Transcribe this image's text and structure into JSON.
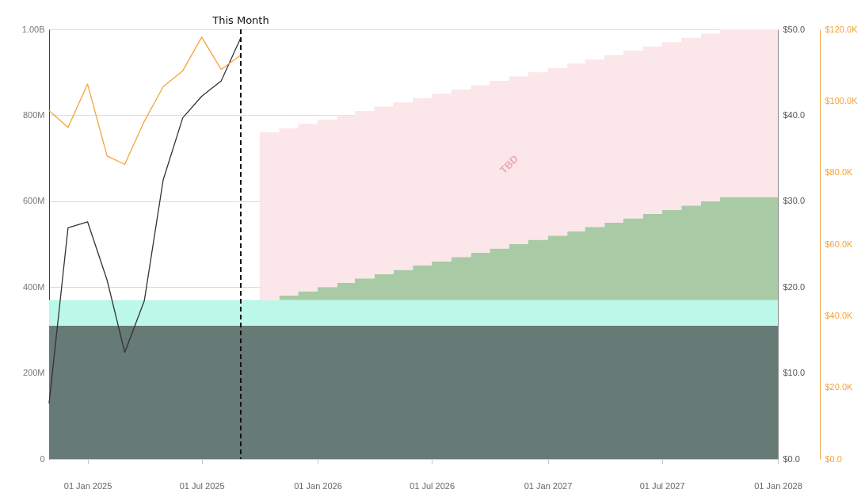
{
  "chart_data": {
    "type": "area",
    "stacked": true,
    "x": [
      "2024-11-01",
      "2025-10-01",
      "2025-11-01",
      "2025-11-01",
      "2025-12-01",
      "2025-12-01",
      "2026-01-01",
      "2026-01-01",
      "2026-02-01",
      "2026-02-01",
      "2026-03-01",
      "2026-03-01",
      "2026-04-01",
      "2026-04-01",
      "2026-05-01",
      "2026-05-01",
      "2026-06-01",
      "2026-06-01",
      "2026-07-01",
      "2026-07-01",
      "2026-08-01",
      "2026-08-01",
      "2026-09-01",
      "2026-09-01",
      "2026-10-01",
      "2026-10-01",
      "2026-11-01",
      "2026-11-01",
      "2026-12-01",
      "2026-12-01",
      "2027-01-01",
      "2027-01-01",
      "2027-02-01",
      "2027-02-01",
      "2027-03-01",
      "2027-03-01",
      "2027-04-01",
      "2027-04-01",
      "2027-05-01",
      "2027-05-01",
      "2027-06-01",
      "2027-06-01",
      "2027-07-01",
      "2027-07-01",
      "2027-08-01",
      "2027-08-01",
      "2027-09-01",
      "2027-09-01",
      "2027-10-01",
      "2027-10-01",
      "2028-01-01"
    ],
    "xlim": [
      "2024-11-01",
      "2028-01-01"
    ],
    "xticks": [
      {
        "value": "2025-01-01",
        "label": "01 Jan 2025"
      },
      {
        "value": "2025-07-01",
        "label": "01 Jul 2025"
      },
      {
        "value": "2026-01-01",
        "label": "01 Jan 2026"
      },
      {
        "value": "2026-07-01",
        "label": "01 Jul 2026"
      },
      {
        "value": "2027-01-01",
        "label": "01 Jan 2027"
      },
      {
        "value": "2027-07-01",
        "label": "01 Jul 2027"
      },
      {
        "value": "2028-01-01",
        "label": "01 Jan 2028"
      }
    ],
    "ylim": [
      0,
      1000000000
    ],
    "yticks": [
      0,
      {
        "value": 200000000,
        "label": "200M"
      },
      {
        "value": 400000000,
        "label": "400M"
      },
      {
        "value": 600000000,
        "label": "600M"
      },
      {
        "value": 800000000,
        "label": "800M"
      },
      {
        "value": 1000000000,
        "label": "1.00B"
      }
    ],
    "y2lim": [
      0,
      50
    ],
    "y2ticks": [
      {
        "value": 0,
        "label": "$0.0"
      },
      {
        "value": 10,
        "label": "$10.0"
      },
      {
        "value": 20,
        "label": "$20.0"
      },
      {
        "value": 30,
        "label": "$30.0"
      },
      {
        "value": 40,
        "label": "$40.0"
      },
      {
        "value": 50,
        "label": "$50.0"
      }
    ],
    "y3lim": [
      0,
      120000
    ],
    "y3ticks": [
      {
        "value": 0,
        "label": "$0.0"
      },
      {
        "value": 20000,
        "label": "$20.0K"
      },
      {
        "value": 40000,
        "label": "$40.0K"
      },
      {
        "value": 60000,
        "label": "$60.0K"
      },
      {
        "value": 80000,
        "label": "$80.0K"
      },
      {
        "value": 100000,
        "label": "$100.0K"
      },
      {
        "value": 120000,
        "label": "$120.0K"
      }
    ],
    "grid": "y",
    "ref_lines": [
      {
        "axis": "x",
        "value": "2025-09-01",
        "label": "This Month",
        "color": "#111111",
        "line_style": "dashed"
      }
    ],
    "series": [
      {
        "color": "#667a76",
        "values": [
          310000000,
          310000000,
          310000000,
          310000000,
          310000000,
          310000000,
          310000000,
          310000000,
          310000000,
          310000000,
          310000000,
          310000000,
          310000000,
          310000000,
          310000000,
          310000000,
          310000000,
          310000000,
          310000000,
          310000000,
          310000000,
          310000000,
          310000000,
          310000000,
          310000000,
          310000000,
          310000000,
          310000000,
          310000000,
          310000000,
          310000000,
          310000000,
          310000000,
          310000000,
          310000000,
          310000000,
          310000000,
          310000000,
          310000000,
          310000000,
          310000000,
          310000000,
          310000000,
          310000000,
          310000000,
          310000000,
          310000000,
          310000000,
          310000000,
          310000000,
          310000000
        ]
      },
      {
        "color": "#bcf8ea",
        "values": [
          60000000,
          60000000,
          60000000,
          60000000,
          60000000,
          60000000,
          60000000,
          60000000,
          60000000,
          60000000,
          60000000,
          60000000,
          60000000,
          60000000,
          60000000,
          60000000,
          60000000,
          60000000,
          60000000,
          60000000,
          60000000,
          60000000,
          60000000,
          60000000,
          60000000,
          60000000,
          60000000,
          60000000,
          60000000,
          60000000,
          60000000,
          60000000,
          60000000,
          60000000,
          60000000,
          60000000,
          60000000,
          60000000,
          60000000,
          60000000,
          60000000,
          60000000,
          60000000,
          60000000,
          60000000,
          60000000,
          60000000,
          60000000,
          60000000,
          60000000,
          60000000
        ]
      },
      {
        "color": "#a8cba5",
        "values": [
          null,
          null,
          null,
          10000000,
          10000000,
          20000000,
          20000000,
          30000000,
          30000000,
          40000000,
          40000000,
          50000000,
          50000000,
          60000000,
          60000000,
          70000000,
          70000000,
          80000000,
          80000000,
          90000000,
          90000000,
          100000000,
          100000000,
          110000000,
          110000000,
          120000000,
          120000000,
          130000000,
          130000000,
          140000000,
          140000000,
          150000000,
          150000000,
          160000000,
          160000000,
          170000000,
          170000000,
          180000000,
          180000000,
          190000000,
          190000000,
          200000000,
          200000000,
          210000000,
          210000000,
          220000000,
          220000000,
          230000000,
          230000000,
          240000000,
          240000000
        ]
      },
      {
        "name": "TBD",
        "color": "#fbe6e9",
        "values": [
          null,
          390000000,
          390000000,
          390000000,
          390000000,
          390000000,
          390000000,
          390000000,
          390000000,
          390000000,
          390000000,
          390000000,
          390000000,
          390000000,
          390000000,
          390000000,
          390000000,
          390000000,
          390000000,
          390000000,
          390000000,
          390000000,
          390000000,
          390000000,
          390000000,
          390000000,
          390000000,
          390000000,
          390000000,
          390000000,
          390000000,
          390000000,
          390000000,
          390000000,
          390000000,
          390000000,
          390000000,
          390000000,
          390000000,
          390000000,
          390000000,
          390000000,
          390000000,
          390000000,
          390000000,
          390000000,
          390000000,
          390000000,
          390000000,
          390000000,
          390000000
        ]
      },
      {
        "type": "line",
        "axis": "y2",
        "color": "#333333",
        "x": [
          "2024-11-01",
          "2024-12-01",
          "2025-01-01",
          "2025-02-01",
          "2025-03-01",
          "2025-04-01",
          "2025-05-01",
          "2025-06-01",
          "2025-07-01",
          "2025-08-01",
          "2025-09-01"
        ],
        "values": [
          6.5,
          26.9,
          27.6,
          20.8,
          12.4,
          18.4,
          32.5,
          39.7,
          42.2,
          44.0,
          49.0
        ]
      },
      {
        "type": "line",
        "axis": "y3",
        "color": "#f3a43b",
        "x": [
          "2024-11-01",
          "2024-12-01",
          "2025-01-01",
          "2025-02-01",
          "2025-03-01",
          "2025-04-01",
          "2025-05-01",
          "2025-06-01",
          "2025-07-01",
          "2025-08-01",
          "2025-09-01"
        ],
        "values": [
          97300,
          92600,
          104700,
          84600,
          82300,
          94300,
          104000,
          108400,
          117800,
          108800,
          112800
        ]
      }
    ]
  }
}
